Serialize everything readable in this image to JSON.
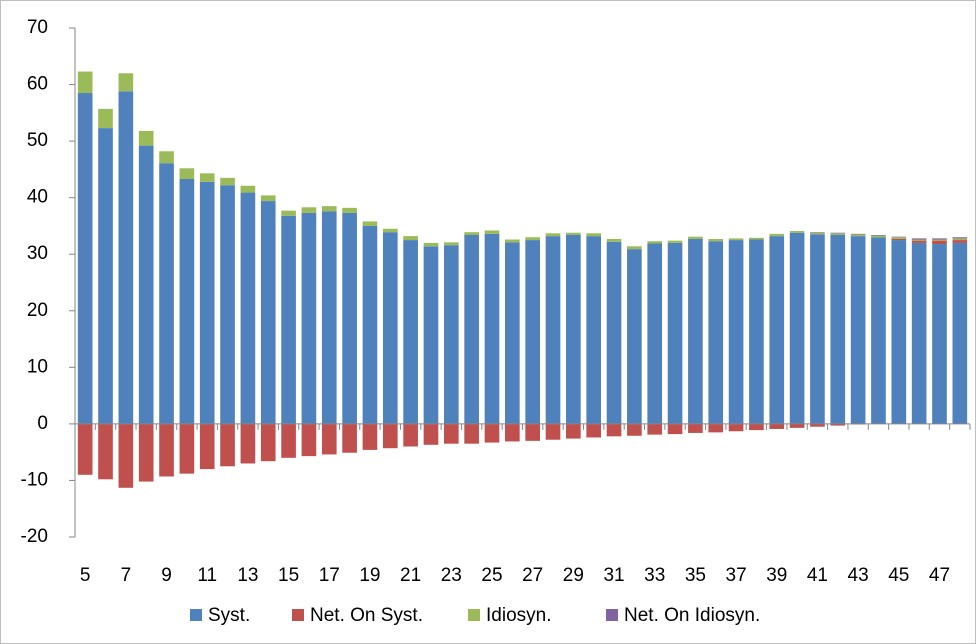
{
  "chart_data": {
    "type": "stacked-bar",
    "categories": [
      5,
      null,
      7,
      null,
      9,
      null,
      11,
      null,
      13,
      null,
      15,
      null,
      17,
      null,
      19,
      null,
      21,
      null,
      23,
      null,
      25,
      null,
      27,
      null,
      29,
      null,
      31,
      null,
      33,
      null,
      35,
      null,
      37,
      null,
      39,
      null,
      41,
      null,
      43,
      null,
      45,
      null,
      47,
      null
    ],
    "series": [
      {
        "name": "Syst.",
        "color": "#4f81bd",
        "values": [
          58.5,
          52.3,
          58.8,
          49.2,
          46.1,
          43.3,
          42.8,
          42.2,
          40.9,
          39.4,
          36.8,
          37.3,
          37.6,
          37.3,
          35.0,
          33.9,
          32.5,
          31.4,
          31.6,
          33.4,
          33.6,
          32.1,
          32.5,
          33.2,
          33.4,
          33.2,
          32.2,
          30.9,
          31.9,
          32.0,
          32.7,
          32.3,
          32.5,
          32.6,
          33.2,
          33.8,
          33.5,
          33.4,
          33.2,
          33.0,
          32.5,
          32.0,
          31.8,
          32.0
        ]
      },
      {
        "name": "Net. On Syst.",
        "color": "#c0504d",
        "values": [
          -9.0,
          -9.8,
          -11.3,
          -10.2,
          -9.3,
          -8.8,
          -8.0,
          -7.5,
          -7.0,
          -6.6,
          -6.0,
          -5.7,
          -5.4,
          -5.1,
          -4.6,
          -4.3,
          -4.0,
          -3.7,
          -3.5,
          -3.5,
          -3.3,
          -3.1,
          -3.0,
          -2.8,
          -2.6,
          -2.4,
          -2.2,
          -2.1,
          -1.9,
          -1.8,
          -1.6,
          -1.5,
          -1.3,
          -1.1,
          -0.9,
          -0.7,
          -0.5,
          -0.3,
          -0.1,
          0.0,
          0.2,
          0.4,
          0.6,
          0.5
        ]
      },
      {
        "name": "Idiosyn.",
        "color": "#9bbb59",
        "values": [
          3.8,
          3.4,
          3.2,
          2.6,
          2.1,
          1.9,
          1.5,
          1.3,
          1.2,
          1.0,
          0.9,
          1.0,
          0.9,
          0.9,
          0.8,
          0.6,
          0.7,
          0.6,
          0.5,
          0.5,
          0.6,
          0.5,
          0.5,
          0.5,
          0.4,
          0.5,
          0.5,
          0.5,
          0.4,
          0.4,
          0.4,
          0.4,
          0.3,
          0.3,
          0.4,
          0.3,
          0.3,
          0.3,
          0.3,
          0.3,
          0.3,
          0.2,
          0.2,
          0.3
        ]
      },
      {
        "name": "Net. On Idiosyn.",
        "color": "#8064a2",
        "values": [
          0,
          0,
          0,
          0,
          0,
          0,
          0,
          0,
          0,
          0,
          0,
          0,
          0,
          0,
          0,
          0,
          0,
          0,
          0,
          0,
          0,
          0,
          0,
          0,
          0,
          0,
          0,
          0,
          0,
          0,
          0,
          0,
          0,
          0,
          0,
          0,
          0.1,
          0.1,
          0.1,
          0.1,
          0.1,
          0.2,
          0.2,
          0.2
        ]
      }
    ],
    "ylim": [
      -20,
      70
    ],
    "yticks": [
      -20,
      -10,
      0,
      10,
      20,
      30,
      40,
      50,
      60,
      70
    ],
    "legend": "bottom"
  }
}
